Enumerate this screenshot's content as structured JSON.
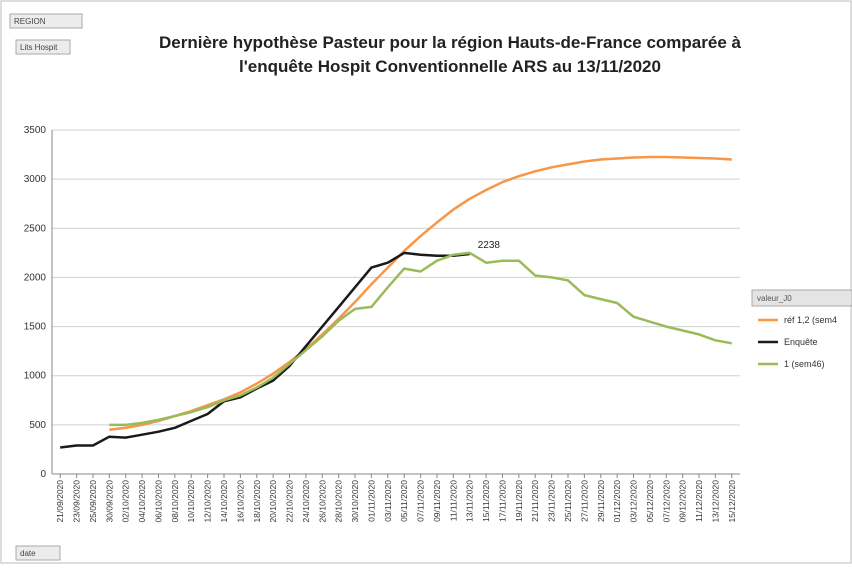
{
  "ui": {
    "region_button": "REGION",
    "field_button": "Lits Hospit",
    "date_button": "date",
    "legend_title": "valeur_J0"
  },
  "chart_data": {
    "type": "line",
    "title": "Dernière hypothèse Pasteur pour la région Hauts-de-France comparée à l'enquête Hospit Conventionnelle ARS au 13/11/2020",
    "categories": [
      "21/09/2020",
      "23/09/2020",
      "25/09/2020",
      "30/09/2020",
      "02/10/2020",
      "04/10/2020",
      "06/10/2020",
      "08/10/2020",
      "10/10/2020",
      "12/10/2020",
      "14/10/2020",
      "16/10/2020",
      "18/10/2020",
      "20/10/2020",
      "22/10/2020",
      "24/10/2020",
      "26/10/2020",
      "28/10/2020",
      "30/10/2020",
      "01/11/2020",
      "03/11/2020",
      "05/11/2020",
      "07/11/2020",
      "09/11/2020",
      "11/11/2020",
      "13/11/2020",
      "15/11/2020",
      "17/11/2020",
      "19/11/2020",
      "21/11/2020",
      "23/11/2020",
      "25/11/2020",
      "27/11/2020",
      "29/11/2020",
      "01/12/2020",
      "03/12/2020",
      "05/12/2020",
      "07/12/2020",
      "09/12/2020",
      "11/12/2020",
      "13/12/2020",
      "15/12/2020"
    ],
    "series": [
      {
        "name": "réf 1,2 (sem4",
        "color": "#f79646",
        "values": [
          null,
          null,
          null,
          450,
          470,
          500,
          540,
          590,
          640,
          700,
          760,
          830,
          920,
          1020,
          1140,
          1270,
          1420,
          1580,
          1750,
          1930,
          2100,
          2270,
          2420,
          2560,
          2690,
          2800,
          2890,
          2970,
          3030,
          3080,
          3120,
          3150,
          3180,
          3200,
          3210,
          3220,
          3225,
          3225,
          3220,
          3215,
          3210,
          3200
        ]
      },
      {
        "name": "Enquête",
        "color": "#1a1a1a",
        "values": [
          270,
          290,
          290,
          380,
          370,
          400,
          430,
          470,
          540,
          610,
          740,
          780,
          870,
          950,
          1100,
          1300,
          1500,
          1700,
          1900,
          2100,
          2150,
          2250,
          2230,
          2220,
          2220,
          2238,
          null,
          null,
          null,
          null,
          null,
          null,
          null,
          null,
          null,
          null,
          null,
          null,
          null,
          null,
          null,
          null
        ],
        "value_labels": [
          null,
          null,
          null,
          null,
          null,
          null,
          null,
          null,
          null,
          null,
          null,
          null,
          null,
          null,
          null,
          null,
          null,
          null,
          null,
          null,
          null,
          null,
          null,
          null,
          null,
          "2238",
          null,
          null,
          null,
          null,
          null,
          null,
          null,
          null,
          null,
          null,
          null,
          null,
          null,
          null,
          null,
          null
        ]
      },
      {
        "name": "1 (sem46)",
        "color": "#9bbb59",
        "values": [
          null,
          null,
          null,
          500,
          500,
          520,
          550,
          590,
          630,
          680,
          750,
          800,
          880,
          980,
          1120,
          1260,
          1400,
          1560,
          1680,
          1700,
          1900,
          2090,
          2060,
          2170,
          2230,
          2250,
          2150,
          2170,
          2170,
          2020,
          2000,
          1970,
          1820,
          1780,
          1740,
          1600,
          1550,
          1500,
          1460,
          1420,
          1360,
          1330
        ]
      }
    ],
    "ylim": [
      0,
      3500
    ],
    "yticks": [
      0,
      500,
      1000,
      1500,
      2000,
      2500,
      3000,
      3500
    ],
    "grid": true
  }
}
